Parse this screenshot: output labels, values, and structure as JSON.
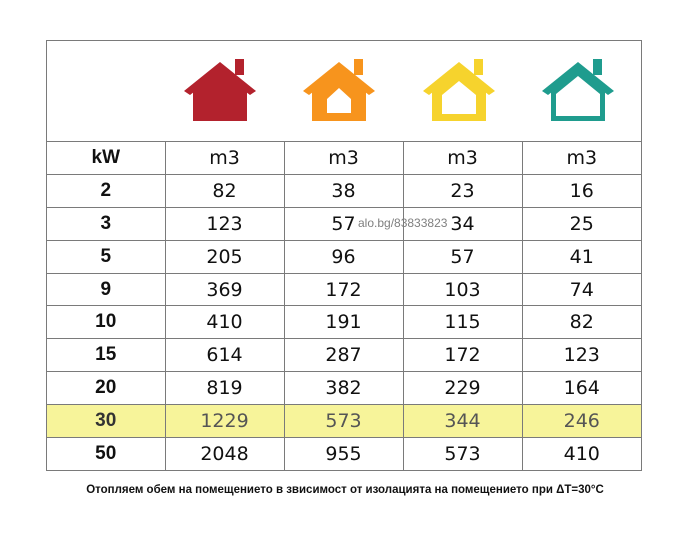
{
  "houses": [
    {
      "icon": "house-red-icon",
      "color": "#b3222d"
    },
    {
      "icon": "house-orange-icon",
      "color": "#f7941d"
    },
    {
      "icon": "house-yellow-icon",
      "color": "#f6d32d"
    },
    {
      "icon": "house-teal-icon",
      "color": "#1f9c8e"
    }
  ],
  "highlight_color": "#f7f49a",
  "table": {
    "header": [
      "kW",
      "m3",
      "m3",
      "m3",
      "m3"
    ],
    "rows": [
      [
        "2",
        "82",
        "38",
        "23",
        "16"
      ],
      [
        "3",
        "123",
        "57",
        "34",
        "25"
      ],
      [
        "5",
        "205",
        "96",
        "57",
        "41"
      ],
      [
        "9",
        "369",
        "172",
        "103",
        "74"
      ],
      [
        "10",
        "410",
        "191",
        "115",
        "82"
      ],
      [
        "15",
        "614",
        "287",
        "172",
        "123"
      ],
      [
        "20",
        "819",
        "382",
        "229",
        "164"
      ],
      [
        "30",
        "1229",
        "573",
        "344",
        "246"
      ],
      [
        "50",
        "2048",
        "955",
        "573",
        "410"
      ]
    ],
    "highlight_row": "30"
  },
  "watermark": "alo.bg/83833823",
  "caption": "Отопляем обем на помещението в звисимост от изолацията на помещението при ΔT=30°C"
}
